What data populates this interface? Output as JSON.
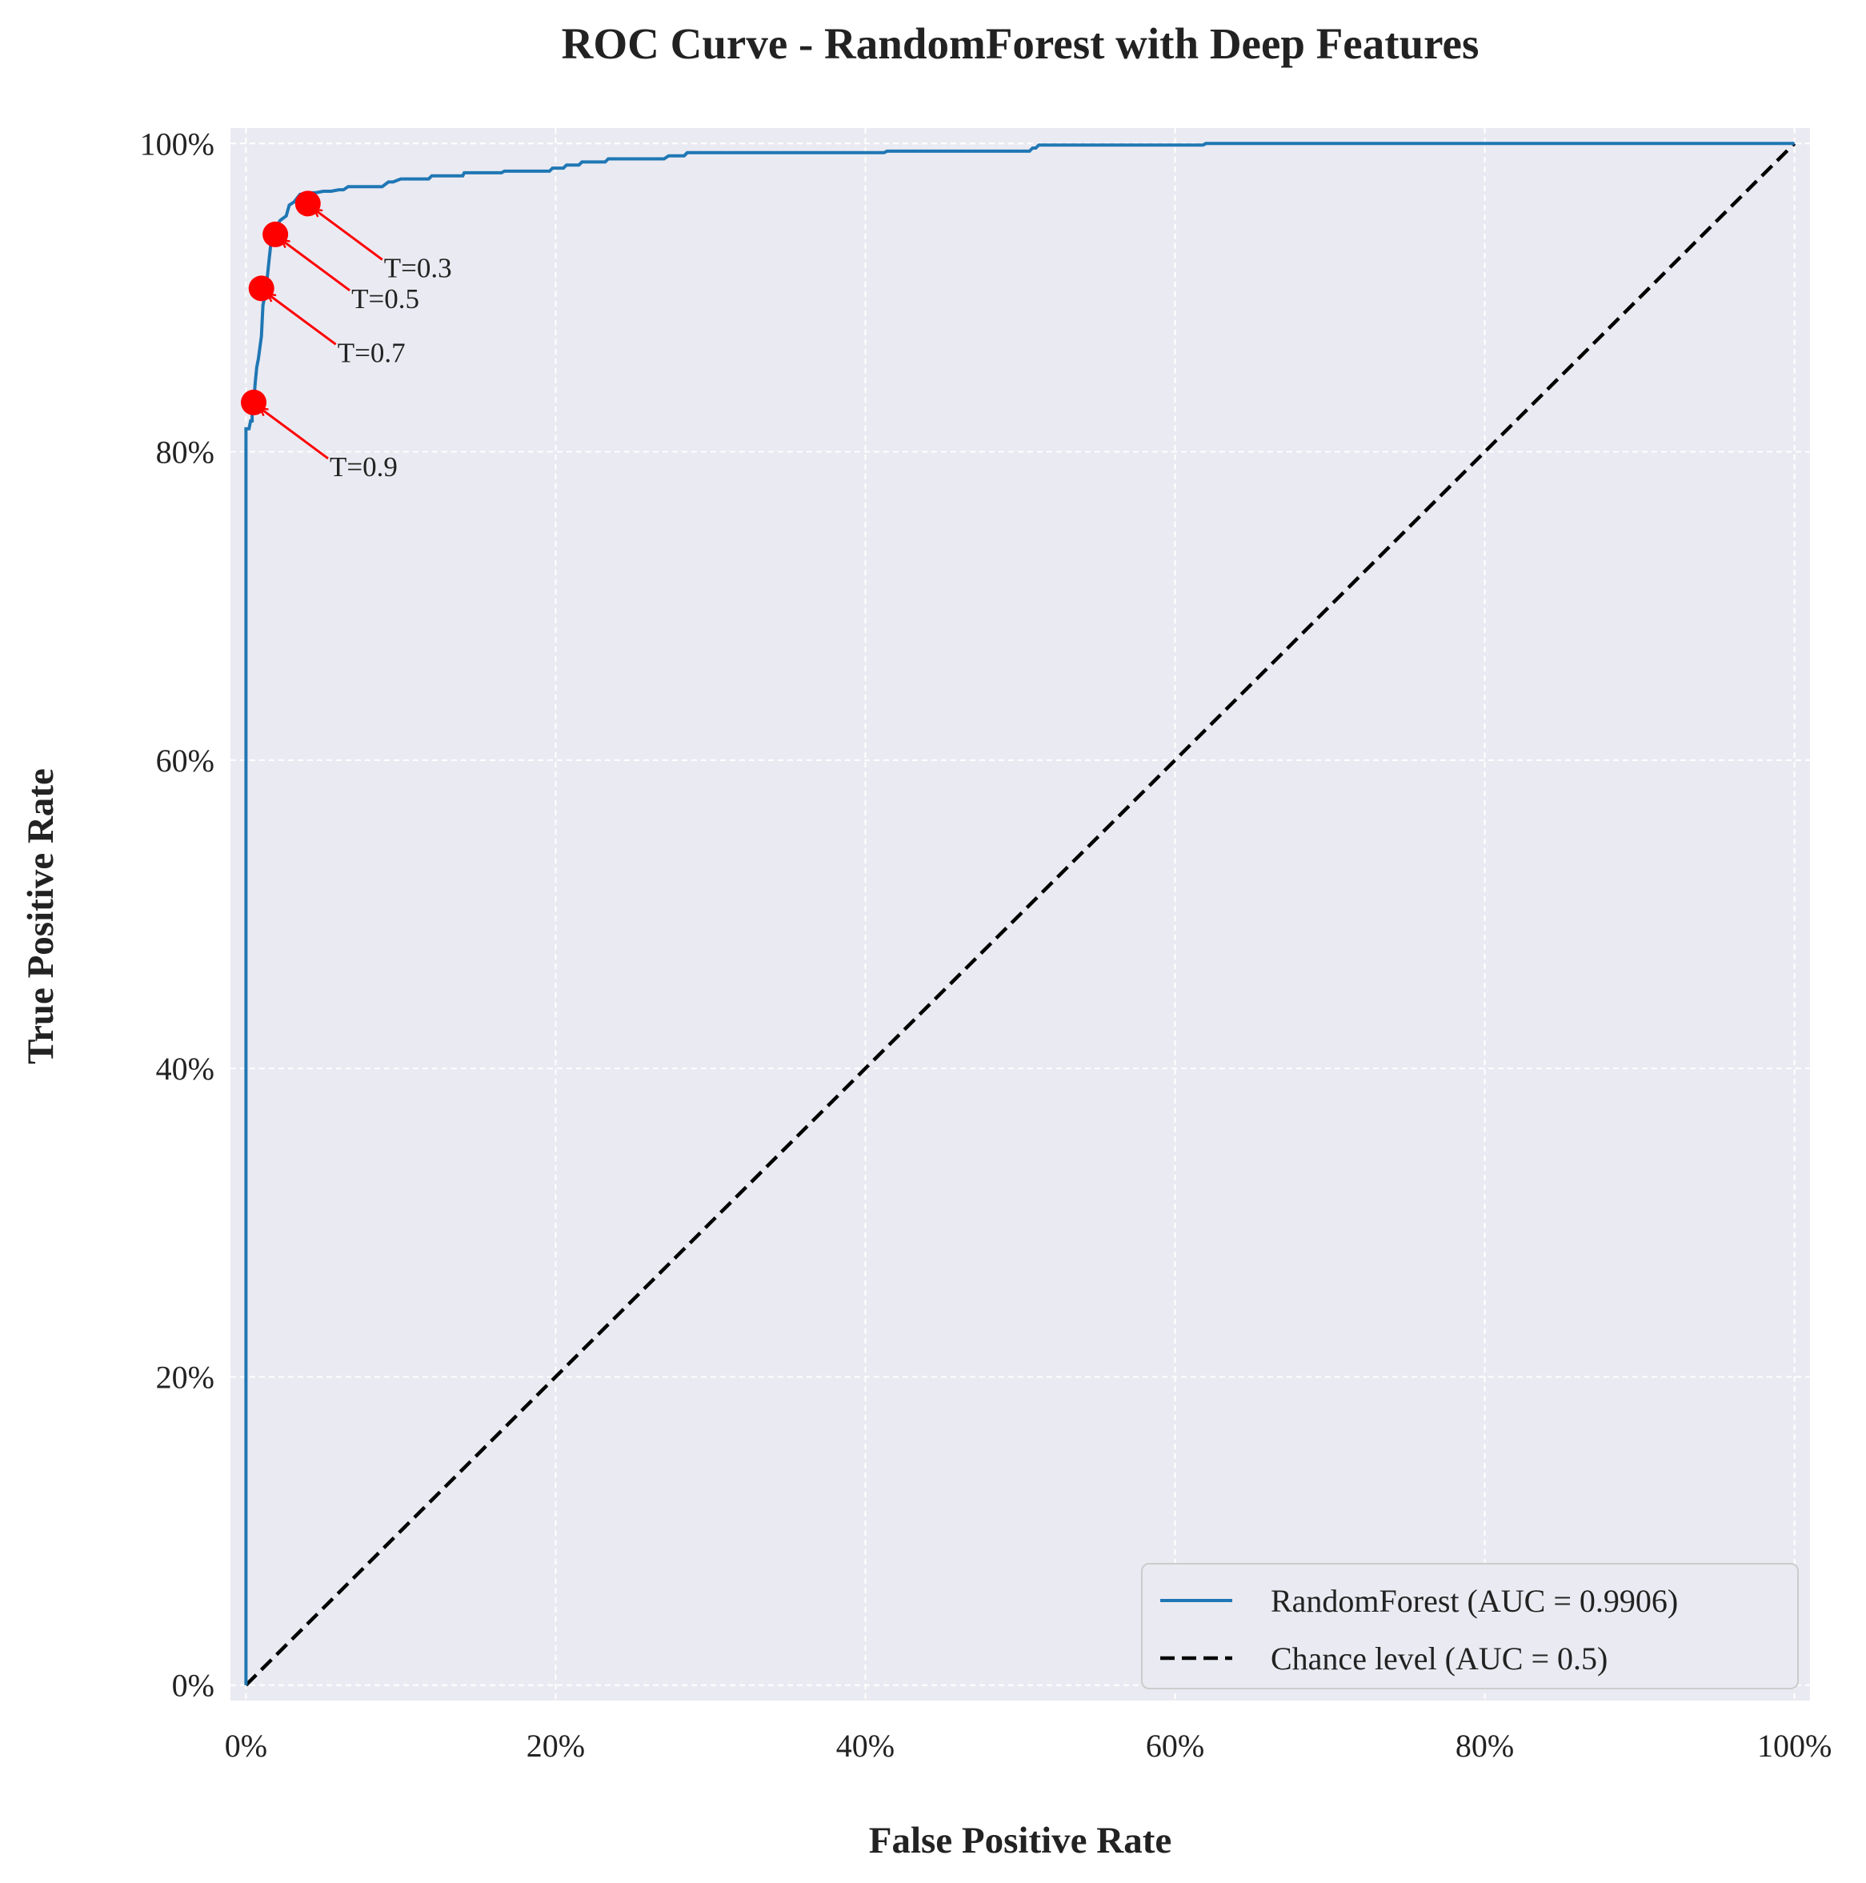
{
  "chart_data": {
    "type": "line",
    "title": "ROC Curve - RandomForest with Deep Features",
    "xlabel": "False Positive Rate",
    "ylabel": "True Positive Rate",
    "xlim": [
      -0.01,
      1.01
    ],
    "ylim": [
      -0.01,
      1.01
    ],
    "x_ticks": [
      0,
      0.2,
      0.4,
      0.6,
      0.8,
      1.0
    ],
    "x_tick_labels": [
      "0%",
      "20%",
      "40%",
      "60%",
      "80%",
      "100%"
    ],
    "y_ticks": [
      0,
      0.2,
      0.4,
      0.6,
      0.8,
      1.0
    ],
    "y_tick_labels": [
      "0%",
      "20%",
      "40%",
      "60%",
      "80%",
      "100%"
    ],
    "grid": true,
    "legend_position": "lower-right",
    "series": [
      {
        "name": "RandomForest (AUC = 0.9906)",
        "style": "solid",
        "color": "#1f77b4",
        "x": [
          0.0,
          0.0,
          0.002,
          0.003,
          0.004,
          0.004,
          0.005,
          0.006,
          0.006,
          0.007,
          0.007,
          0.008,
          0.008,
          0.01,
          0.01,
          0.011,
          0.011,
          0.012,
          0.012,
          0.013,
          0.013,
          0.014,
          0.014,
          0.015,
          0.016,
          0.017,
          0.019,
          0.022,
          0.026,
          0.028,
          0.031,
          0.035,
          0.04,
          0.045,
          0.05,
          0.055,
          0.06,
          0.063,
          0.066,
          0.07,
          0.088,
          0.092,
          0.095,
          0.1,
          0.118,
          0.12,
          0.14,
          0.141,
          0.165,
          0.167,
          0.196,
          0.198,
          0.205,
          0.207,
          0.215,
          0.217,
          0.232,
          0.234,
          0.27,
          0.273,
          0.283,
          0.285,
          0.412,
          0.414,
          0.506,
          0.508,
          0.51,
          0.512,
          0.618,
          0.62,
          1.0
        ],
        "y": [
          0.0,
          0.815,
          0.815,
          0.82,
          0.82,
          0.832,
          0.832,
          0.845,
          0.845,
          0.855,
          0.855,
          0.86,
          0.86,
          0.875,
          0.875,
          0.895,
          0.895,
          0.9,
          0.9,
          0.906,
          0.906,
          0.915,
          0.915,
          0.925,
          0.934,
          0.944,
          0.944,
          0.95,
          0.953,
          0.96,
          0.962,
          0.967,
          0.968,
          0.968,
          0.969,
          0.969,
          0.97,
          0.97,
          0.972,
          0.972,
          0.972,
          0.975,
          0.975,
          0.977,
          0.977,
          0.979,
          0.979,
          0.981,
          0.981,
          0.982,
          0.982,
          0.984,
          0.984,
          0.986,
          0.986,
          0.988,
          0.988,
          0.99,
          0.99,
          0.992,
          0.992,
          0.994,
          0.994,
          0.995,
          0.995,
          0.997,
          0.997,
          0.999,
          0.999,
          1.0,
          1.0
        ]
      },
      {
        "name": "Chance level (AUC = 0.5)",
        "style": "dashed",
        "color": "#000000",
        "x": [
          0.0,
          1.0
        ],
        "y": [
          0.0,
          1.0
        ]
      }
    ],
    "threshold_points": {
      "color": "#ff0000",
      "points": [
        {
          "label": "T=0.9",
          "x": 0.005,
          "y": 0.832
        },
        {
          "label": "T=0.7",
          "x": 0.01,
          "y": 0.906
        },
        {
          "label": "T=0.5",
          "x": 0.019,
          "y": 0.941
        },
        {
          "label": "T=0.3",
          "x": 0.04,
          "y": 0.961
        }
      ]
    }
  }
}
